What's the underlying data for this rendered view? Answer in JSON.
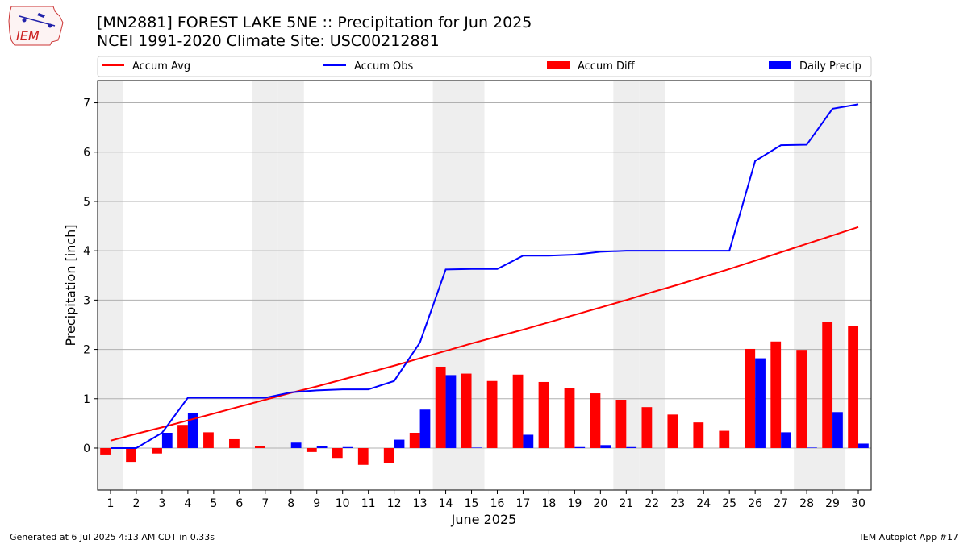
{
  "logo": {
    "text": "IEM"
  },
  "title_line1": "[MN2881] FOREST LAKE 5NE :: Precipitation for Jun 2025",
  "title_line2": "NCEI 1991-2020 Climate Site: USC00212881",
  "footer_left": "Generated at 6 Jul 2025 4:13 AM CDT in 0.33s",
  "footer_right": "IEM Autoplot App #17",
  "colors": {
    "avg": "#ff0000",
    "obs": "#0000ff",
    "diff": "#ff0000",
    "daily": "#0000ff",
    "weekend": "#eeeeee",
    "grid": "#b0b0b0"
  },
  "chart_data": {
    "type": "bar",
    "xlabel": "June 2025",
    "ylabel": "Precipitation [inch]",
    "ylim": [
      -0.85,
      7.45
    ],
    "yticks": [
      0,
      1,
      2,
      3,
      4,
      5,
      6,
      7
    ],
    "grid": true,
    "legend_position": "top",
    "categories": [
      "1",
      "2",
      "3",
      "4",
      "5",
      "6",
      "7",
      "8",
      "9",
      "10",
      "11",
      "12",
      "13",
      "14",
      "15",
      "16",
      "17",
      "18",
      "19",
      "20",
      "21",
      "22",
      "23",
      "24",
      "25",
      "26",
      "27",
      "28",
      "29",
      "30"
    ],
    "weekend_days": [
      1,
      7,
      8,
      14,
      15,
      21,
      22,
      28,
      29
    ],
    "series": [
      {
        "name": "Accum Avg",
        "type": "line",
        "values": [
          0.15,
          0.29,
          0.42,
          0.56,
          0.7,
          0.84,
          0.98,
          1.12,
          1.25,
          1.39,
          1.53,
          1.67,
          1.82,
          1.97,
          2.12,
          2.26,
          2.4,
          2.55,
          2.7,
          2.85,
          3.0,
          3.16,
          3.31,
          3.47,
          3.63,
          3.8,
          3.97,
          4.14,
          4.31,
          4.48
        ]
      },
      {
        "name": "Accum Obs",
        "type": "line",
        "values": [
          0.0,
          0.0,
          0.31,
          1.02,
          1.02,
          1.02,
          1.02,
          1.13,
          1.17,
          1.19,
          1.19,
          1.36,
          2.14,
          3.62,
          3.63,
          3.63,
          3.9,
          3.9,
          3.92,
          3.98,
          4.0,
          4.0,
          4.0,
          4.0,
          4.0,
          5.82,
          6.14,
          6.15,
          6.88,
          6.97
        ]
      },
      {
        "name": "Accum Diff",
        "type": "bar",
        "values": [
          -0.13,
          -0.28,
          -0.11,
          0.47,
          0.32,
          0.18,
          0.04,
          0.0,
          -0.08,
          -0.2,
          -0.34,
          -0.31,
          0.31,
          1.65,
          1.51,
          1.36,
          1.49,
          1.34,
          1.21,
          1.11,
          0.98,
          0.83,
          0.68,
          0.52,
          0.35,
          2.01,
          2.16,
          1.99,
          2.55,
          2.48
        ]
      },
      {
        "name": "Daily Precip",
        "type": "bar",
        "values": [
          0.0,
          0.0,
          0.31,
          0.71,
          0.0,
          0.0,
          0.0,
          0.11,
          0.04,
          0.02,
          0.0,
          0.17,
          0.78,
          1.48,
          0.01,
          0.0,
          0.27,
          0.0,
          0.02,
          0.06,
          0.02,
          0.0,
          0.0,
          0.0,
          0.0,
          1.82,
          0.32,
          0.01,
          0.73,
          0.09
        ]
      }
    ]
  }
}
